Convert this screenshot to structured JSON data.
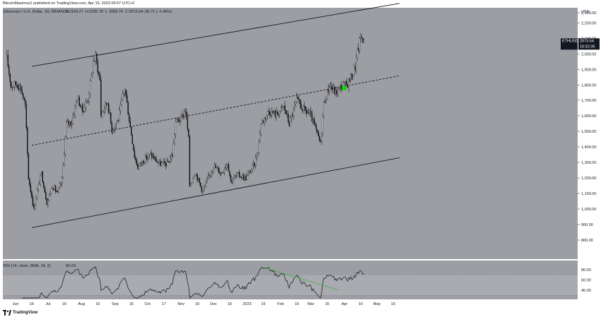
{
  "header": {
    "publish_line": "BitcoinMaximus1 published on TradingView.com, Apr 19, 2023 09:07 UTC+2",
    "symbol_line": "Ethereum / U.S. Dollar, 1D, BINANCE",
    "ohlc": {
      "o_label": "O",
      "o": "2104.27",
      "h_label": "H",
      "h": "2105.78",
      "l_label": "L",
      "l": "2069.74",
      "c_label": "C",
      "c": "2073.54",
      "chg": "−30.71 (−1.46%)"
    }
  },
  "price_axis": {
    "currency": "USD",
    "ticks": [
      "2,300.00",
      "2,200.00",
      "2,100.00",
      "2,000.00",
      "1,900.00",
      "1,800.00",
      "1,700.00",
      "1,600.00",
      "1,500.00",
      "1,400.00",
      "1,300.00",
      "1,200.00",
      "1,100.00",
      "1,000.00",
      "900.00",
      "800.00"
    ],
    "tick_values": [
      2300,
      2200,
      2100,
      2000,
      1900,
      1800,
      1700,
      1600,
      1500,
      1400,
      1300,
      1200,
      1100,
      1000,
      900,
      800
    ]
  },
  "price_tag": {
    "symbol": "ETHUSD",
    "price": "2073.54",
    "countdown": "16:52:35"
  },
  "rsi_panel": {
    "header": "RSI (14, close, SMA, 14, 2)",
    "value": "66.03",
    "ticks": [
      "80.00",
      "60.00",
      "40.00"
    ],
    "tick_values": [
      80,
      60,
      40
    ]
  },
  "time_axis": {
    "labels": [
      "Jun",
      "16",
      "Jul",
      "16",
      "Aug",
      "16",
      "Sep",
      "16",
      "Oct",
      "17",
      "Nov",
      "16",
      "Dec",
      "16",
      "2023",
      "16",
      "Feb",
      "16",
      "Mar",
      "16",
      "Apr",
      "16",
      "May",
      "16"
    ]
  },
  "footer": {
    "brand": "TradingView"
  },
  "colors": {
    "chart_bg": "#9c9ea4",
    "candle": "#0b0b0b",
    "channel": "#1c1c1c",
    "highlight": "#00dd00",
    "rsi_band": "#a9abb1",
    "divergence": "#4caf50"
  },
  "chart_data": {
    "type": "candlestick",
    "title": "Ethereum / U.S. Dollar, 1D, BINANCE",
    "xlabel": "",
    "ylabel": "USD",
    "ylim": [
      720,
      2350
    ],
    "close_path": [
      [
        "2022-05-24",
        1970
      ],
      [
        "2022-05-28",
        1790
      ],
      [
        "2022-06-02",
        1810
      ],
      [
        "2022-06-06",
        1780
      ],
      [
        "2022-06-10",
        1660
      ],
      [
        "2022-06-13",
        1200
      ],
      [
        "2022-06-16",
        1080
      ],
      [
        "2022-06-18",
        995
      ],
      [
        "2022-06-21",
        1120
      ],
      [
        "2022-06-25",
        1230
      ],
      [
        "2022-06-30",
        1040
      ],
      [
        "2022-07-05",
        1150
      ],
      [
        "2022-07-10",
        1100
      ],
      [
        "2022-07-14",
        1190
      ],
      [
        "2022-07-18",
        1550
      ],
      [
        "2022-07-23",
        1560
      ],
      [
        "2022-07-28",
        1720
      ],
      [
        "2022-08-02",
        1630
      ],
      [
        "2022-08-07",
        1710
      ],
      [
        "2022-08-12",
        1950
      ],
      [
        "2022-08-14",
        1980
      ],
      [
        "2022-08-18",
        1830
      ],
      [
        "2022-08-19",
        1610
      ],
      [
        "2022-08-25",
        1690
      ],
      [
        "2022-08-29",
        1510
      ],
      [
        "2022-09-04",
        1580
      ],
      [
        "2022-09-08",
        1720
      ],
      [
        "2022-09-10",
        1780
      ],
      [
        "2022-09-14",
        1580
      ],
      [
        "2022-09-19",
        1340
      ],
      [
        "2022-09-22",
        1270
      ],
      [
        "2022-09-28",
        1320
      ],
      [
        "2022-10-04",
        1350
      ],
      [
        "2022-10-12",
        1290
      ],
      [
        "2022-10-19",
        1290
      ],
      [
        "2022-10-24",
        1350
      ],
      [
        "2022-10-27",
        1560
      ],
      [
        "2022-11-01",
        1580
      ],
      [
        "2022-11-05",
        1640
      ],
      [
        "2022-11-08",
        1450
      ],
      [
        "2022-11-09",
        1150
      ],
      [
        "2022-11-14",
        1240
      ],
      [
        "2022-11-21",
        1110
      ],
      [
        "2022-11-25",
        1180
      ],
      [
        "2022-12-01",
        1280
      ],
      [
        "2022-12-08",
        1230
      ],
      [
        "2022-12-14",
        1300
      ],
      [
        "2022-12-17",
        1180
      ],
      [
        "2022-12-23",
        1220
      ],
      [
        "2022-12-31",
        1200
      ],
      [
        "2023-01-08",
        1290
      ],
      [
        "2023-01-11",
        1380
      ],
      [
        "2023-01-14",
        1550
      ],
      [
        "2023-01-21",
        1630
      ],
      [
        "2023-01-28",
        1610
      ],
      [
        "2023-02-04",
        1660
      ],
      [
        "2023-02-09",
        1550
      ],
      [
        "2023-02-16",
        1700
      ],
      [
        "2023-02-22",
        1640
      ],
      [
        "2023-02-28",
        1610
      ],
      [
        "2023-03-03",
        1560
      ],
      [
        "2023-03-10",
        1420
      ],
      [
        "2023-03-13",
        1680
      ],
      [
        "2023-03-18",
        1800
      ],
      [
        "2023-03-24",
        1750
      ],
      [
        "2023-03-30",
        1800
      ],
      [
        "2023-04-03",
        1800
      ],
      [
        "2023-04-08",
        1860
      ],
      [
        "2023-04-11",
        1920
      ],
      [
        "2023-04-13",
        2010
      ],
      [
        "2023-04-16",
        2110
      ],
      [
        "2023-04-18",
        2100
      ],
      [
        "2023-04-19",
        2073.54
      ]
    ],
    "channel_lines": [
      {
        "role": "upper",
        "from": [
          "2022-06-16",
          1920
        ],
        "to": [
          "2023-05-22",
          2360
        ]
      },
      {
        "role": "mid",
        "from": [
          "2022-06-16",
          1410
        ],
        "to": [
          "2023-05-22",
          1860
        ],
        "dashed": true
      },
      {
        "role": "lower",
        "from": [
          "2022-06-16",
          880
        ],
        "to": [
          "2023-05-22",
          1330
        ]
      }
    ],
    "markers": [
      {
        "at": [
          "2023-04-01",
          1780
        ],
        "color": "#00dd00",
        "shape": "square"
      }
    ],
    "rsi": {
      "ylim": [
        25,
        95
      ],
      "band": [
        30,
        70
      ],
      "divergence_line": {
        "from": [
          "2023-01-17",
          84
        ],
        "to": [
          "2023-03-27",
          40
        ]
      }
    }
  }
}
